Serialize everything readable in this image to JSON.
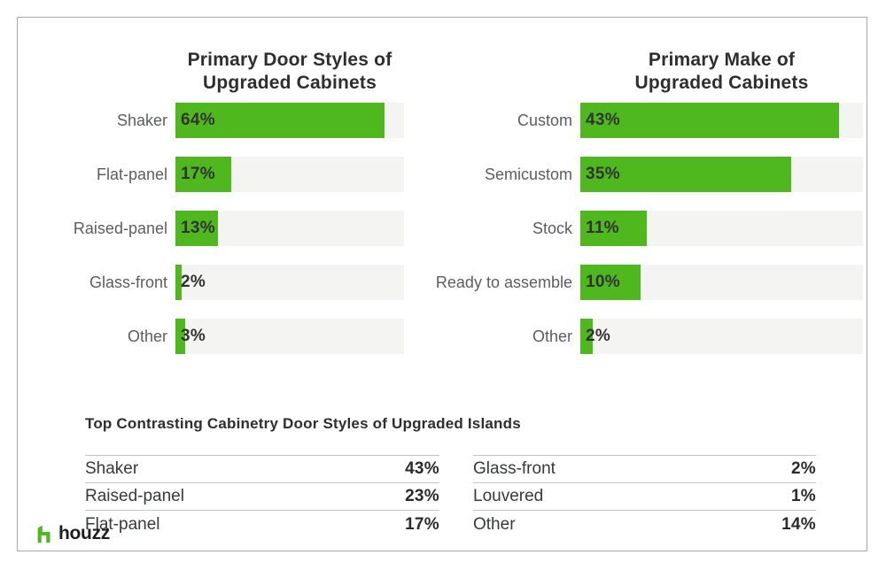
{
  "colors": {
    "bar_green": "#4fb81e",
    "bar_track": "#f4f4f3",
    "title_text": "#2e2e2e",
    "label_text": "#5c5e5e",
    "value_text": "#323232",
    "card_border": "#a8a8a8",
    "rule_line": "#c9c9c9"
  },
  "chart_data": [
    {
      "type": "bar",
      "orientation": "horizontal",
      "title": "Primary Door Styles of Upgraded Cabinets",
      "title_lines": [
        "Primary Door Styles of",
        "Upgraded Cabinets"
      ],
      "categories": [
        "Shaker",
        "Flat-panel",
        "Raised-panel",
        "Glass-front",
        "Other"
      ],
      "values": [
        64,
        17,
        13,
        2,
        3
      ],
      "value_labels": [
        "64%",
        "17%",
        "13%",
        "2%",
        "3%"
      ],
      "xlim": [
        0,
        70
      ],
      "grid": false,
      "legend": false
    },
    {
      "type": "bar",
      "orientation": "horizontal",
      "title": "Primary Make of Upgraded Cabinets",
      "title_lines": [
        "Primary Make of",
        "Upgraded Cabinets"
      ],
      "categories": [
        "Custom",
        "Semicustom",
        "Stock",
        "Ready to assemble",
        "Other"
      ],
      "values": [
        43,
        35,
        11,
        10,
        2
      ],
      "value_labels": [
        "43%",
        "35%",
        "11%",
        "10%",
        "2%"
      ],
      "xlim": [
        0,
        47
      ],
      "grid": false,
      "legend": false
    },
    {
      "type": "table",
      "title": "Top Contrasting Cabinetry Door Styles of Upgraded Islands",
      "columns": [
        {
          "rows": [
            {
              "label": "Shaker",
              "value": "43%"
            },
            {
              "label": "Raised-panel",
              "value": "23%"
            },
            {
              "label": "Flat-panel",
              "value": "17%"
            }
          ]
        },
        {
          "rows": [
            {
              "label": "Glass-front",
              "value": "2%"
            },
            {
              "label": "Louvered",
              "value": "1%"
            },
            {
              "label": "Other",
              "value": "14%"
            }
          ]
        }
      ]
    }
  ],
  "footer": {
    "logo_text": "houzz"
  }
}
